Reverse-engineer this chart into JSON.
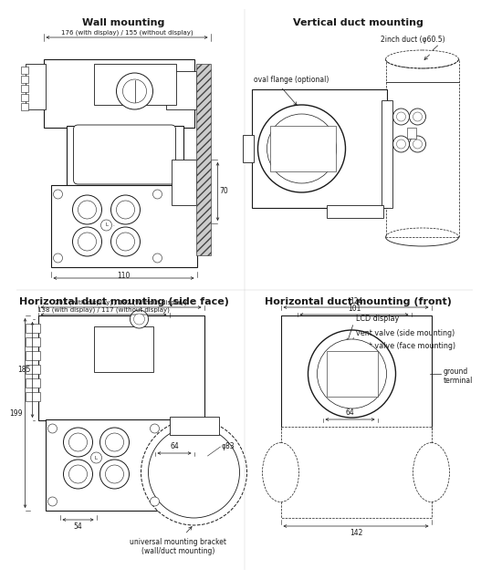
{
  "bg": "#ffffff",
  "lc": "#1a1a1a",
  "gray": "#666666",
  "titles": {
    "wall": "Wall mounting",
    "vertical": "Vertical duct mounting",
    "horiz_side": "Horizontal duct mounting (side face)",
    "horiz_front": "Horizontal duct mounting (front)"
  },
  "dims": {
    "w176": "176 (with display) / 155 (without display)",
    "w110": "110",
    "w70": "70",
    "vd_duct": "2inch duct (φ60.5)",
    "vd_flange": "oval flange (optional)",
    "hs_203": "203 (with display) / 182 (without display)",
    "hs_138": "138 (with display) / 117 (without display)",
    "hs_199": "199",
    "hs_185": "185",
    "hs_64": "64",
    "hs_54": "54",
    "hs_83": "φ83",
    "hf_124": "124",
    "hf_101": "101",
    "hf_64": "64",
    "hf_142": "142",
    "lcd": "LCD display",
    "vent_side": "vent valve (side mounting)",
    "vent_face": "vent valve (face mounting)",
    "ground": "ground\nterminal",
    "bracket": "universal mounting bracket\n(wall/duct mounting)"
  },
  "ft": 8.0,
  "fd": 5.5,
  "fl": 5.8
}
